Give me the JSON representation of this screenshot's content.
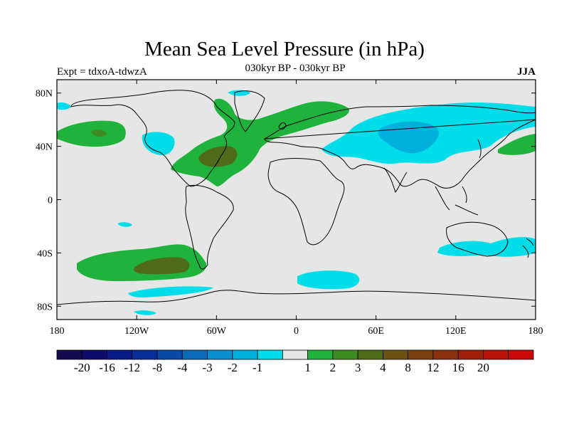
{
  "header": {
    "title": "Mean Sea Level Pressure (in hPa)",
    "experiment": "Expt = tdxoA-tdwzA",
    "period": "030kyr BP - 030kyr BP",
    "season": "JJA"
  },
  "axes": {
    "x_ticks": [
      "180",
      "120W",
      "60W",
      "0",
      "60E",
      "120E",
      "180"
    ],
    "y_ticks": [
      "80N",
      "40N",
      "0",
      "40S",
      "80S"
    ]
  },
  "colors": {
    "background": "#e6e6e6",
    "neg1": "#00dde8",
    "neg2": "#00b0dc",
    "pos1": "#1fb23c",
    "pos2": "#3f8a22",
    "pos3": "#4f6a18",
    "pos4": "#6b5214"
  },
  "colorbar": {
    "colors": [
      "#140b4f",
      "#0d0b6b",
      "#0a1a86",
      "#0a2f98",
      "#0a49a8",
      "#0a6ab8",
      "#0a90cc",
      "#00b0dc",
      "#00dde8",
      "#e6e6e6",
      "#1fb23c",
      "#3f8a22",
      "#4f6a18",
      "#6b5214",
      "#7a4212",
      "#8a2f10",
      "#a0200c",
      "#b8140c",
      "#cc0a0a"
    ],
    "labels": [
      "-20",
      "-16",
      "-12",
      "-8",
      "-4",
      "-3",
      "-2",
      "-1",
      "1",
      "2",
      "3",
      "4",
      "8",
      "12",
      "16",
      "20"
    ]
  }
}
